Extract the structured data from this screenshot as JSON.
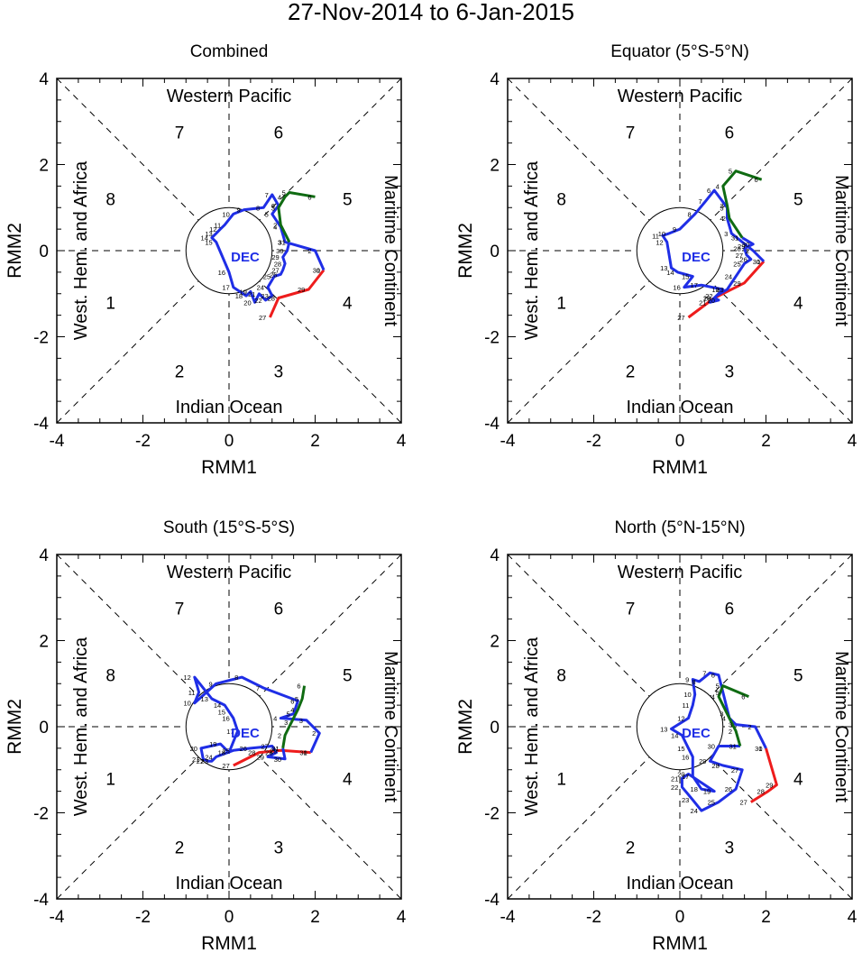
{
  "figure": {
    "title": "27-Nov-2014 to 6-Jan-2015"
  },
  "colors": {
    "nov": "#ee1c1c",
    "dec": "#1f2ee6",
    "jan": "#0f6b12",
    "axis": "#000000"
  },
  "chart_data": [
    {
      "type": "line",
      "title": "Combined",
      "xlabel": "RMM1",
      "ylabel": "RMM2",
      "xlim": [
        -4,
        4
      ],
      "ylim": [
        -4,
        4
      ],
      "xticks": [
        "-4",
        "-2",
        "0",
        "2",
        "4"
      ],
      "yticks": [
        "-4",
        "-2",
        "0",
        "2",
        "4"
      ],
      "regions": {
        "top": "Western Pacific",
        "bottom": "Indian Ocean",
        "left": "West. Hem. and Africa",
        "right": "Maritime Continent"
      },
      "phases": [
        "1",
        "2",
        "3",
        "4",
        "5",
        "6",
        "7",
        "8"
      ],
      "month_label": "DEC",
      "series": [
        {
          "name": "Nov",
          "color_key": "nov",
          "points": [
            [
              0.95,
              -1.55
            ],
            [
              1.15,
              -1.1
            ],
            [
              1.85,
              -0.9
            ],
            [
              2.2,
              -0.45
            ]
          ],
          "labels": [
            "27",
            "28",
            "29",
            "30"
          ]
        },
        {
          "name": "Dec",
          "color_key": "dec",
          "points": [
            [
              2.2,
              -0.45
            ],
            [
              2.0,
              0.0
            ],
            [
              1.3,
              0.2
            ],
            [
              1.2,
              0.55
            ],
            [
              1.0,
              0.85
            ],
            [
              1.15,
              1.05
            ],
            [
              1.0,
              1.3
            ],
            [
              0.8,
              1.0
            ],
            [
              0.35,
              0.95
            ],
            [
              0.1,
              0.85
            ],
            [
              -0.1,
              0.6
            ],
            [
              -0.2,
              0.5
            ],
            [
              -0.3,
              0.4
            ],
            [
              -0.4,
              0.3
            ],
            [
              -0.3,
              0.2
            ],
            [
              0.0,
              -0.5
            ],
            [
              0.1,
              -0.85
            ],
            [
              0.4,
              -1.05
            ],
            [
              0.5,
              -0.95
            ],
            [
              0.6,
              -1.2
            ],
            [
              0.7,
              -1.0
            ],
            [
              0.85,
              -1.15
            ],
            [
              1.0,
              -1.05
            ],
            [
              0.9,
              -0.85
            ],
            [
              1.05,
              -0.6
            ],
            [
              1.2,
              -0.55
            ],
            [
              1.25,
              -0.45
            ],
            [
              1.3,
              -0.3
            ],
            [
              1.25,
              -0.15
            ],
            [
              1.35,
              0.0
            ],
            [
              1.4,
              0.2
            ]
          ],
          "labels": [
            "1",
            "2",
            "3",
            "4",
            "5",
            "6",
            "7",
            "8",
            "9",
            "10",
            "11",
            "12",
            "13",
            "14",
            "15",
            "16",
            "17",
            "18",
            "19",
            "20",
            "21",
            "22",
            "23",
            "24",
            "25",
            "26",
            "27",
            "28",
            "29",
            "30",
            "31"
          ]
        },
        {
          "name": "Jan",
          "color_key": "jan",
          "points": [
            [
              1.4,
              0.2
            ],
            [
              1.2,
              0.6
            ],
            [
              1.15,
              1.0
            ],
            [
              1.3,
              1.25
            ],
            [
              1.4,
              1.35
            ],
            [
              2.0,
              1.25
            ]
          ],
          "labels": [
            "1",
            "2",
            "3",
            "4",
            "5",
            "6"
          ]
        }
      ]
    },
    {
      "type": "line",
      "title": "Equator (5°S-5°N)",
      "xlabel": "RMM1",
      "ylabel": "RMM2",
      "xlim": [
        -4,
        4
      ],
      "ylim": [
        -4,
        4
      ],
      "xticks": [
        "-4",
        "-2",
        "0",
        "2",
        "4"
      ],
      "yticks": [
        "-4",
        "-2",
        "0",
        "2",
        "4"
      ],
      "regions": {
        "top": "Western Pacific",
        "bottom": "Indian Ocean",
        "left": "West. Hem. and Africa",
        "right": "Maritime Continent"
      },
      "phases": [
        "1",
        "2",
        "3",
        "4",
        "5",
        "6",
        "7",
        "8"
      ],
      "month_label": "DEC",
      "series": [
        {
          "name": "Nov",
          "color_key": "nov",
          "points": [
            [
              0.2,
              -1.55
            ],
            [
              0.8,
              -1.1
            ],
            [
              1.5,
              -0.75
            ],
            [
              1.95,
              -0.25
            ]
          ],
          "labels": [
            "27",
            "28",
            "29",
            "30"
          ]
        },
        {
          "name": "Dec",
          "color_key": "dec",
          "points": [
            [
              1.95,
              -0.25
            ],
            [
              1.7,
              0.0
            ],
            [
              1.2,
              0.4
            ],
            [
              1.1,
              0.75
            ],
            [
              1.1,
              1.0
            ],
            [
              0.8,
              1.4
            ],
            [
              0.6,
              1.15
            ],
            [
              0.35,
              0.85
            ],
            [
              0.0,
              0.5
            ],
            [
              -0.25,
              0.4
            ],
            [
              -0.4,
              0.35
            ],
            [
              -0.3,
              0.2
            ],
            [
              -0.2,
              -0.4
            ],
            [
              -0.05,
              -0.5
            ],
            [
              0.3,
              -0.6
            ],
            [
              0.1,
              -0.85
            ],
            [
              0.5,
              -0.8
            ],
            [
              1.0,
              -0.9
            ],
            [
              0.8,
              -1.1
            ],
            [
              0.9,
              -1.15
            ],
            [
              0.7,
              -1.2
            ],
            [
              0.85,
              -1.05
            ],
            [
              1.1,
              -0.9
            ],
            [
              1.3,
              -0.6
            ],
            [
              1.5,
              -0.3
            ],
            [
              1.65,
              -0.2
            ],
            [
              1.55,
              -0.1
            ],
            [
              1.5,
              0.05
            ],
            [
              1.6,
              0.1
            ],
            [
              1.7,
              0.15
            ],
            [
              1.45,
              0.3
            ]
          ],
          "labels": [
            "1",
            "2",
            "3",
            "4",
            "5",
            "6",
            "7",
            "8",
            "9",
            "10",
            "11",
            "12",
            "13",
            "14",
            "15",
            "16",
            "17",
            "18",
            "19",
            "20",
            "21",
            "22",
            "23",
            "24",
            "25",
            "26",
            "27",
            "28",
            "29",
            "30",
            "31"
          ]
        },
        {
          "name": "Jan",
          "color_key": "jan",
          "points": [
            [
              1.45,
              0.3
            ],
            [
              1.15,
              0.75
            ],
            [
              1.1,
              1.05
            ],
            [
              1.0,
              1.5
            ],
            [
              1.3,
              1.85
            ],
            [
              1.9,
              1.65
            ]
          ],
          "labels": [
            "1",
            "2",
            "3",
            "4",
            "5",
            "6"
          ]
        }
      ]
    },
    {
      "type": "line",
      "title": "South (15°S-5°S)",
      "xlabel": "RMM1",
      "ylabel": "RMM2",
      "xlim": [
        -4,
        4
      ],
      "ylim": [
        -4,
        4
      ],
      "xticks": [
        "-4",
        "-2",
        "0",
        "2",
        "4"
      ],
      "yticks": [
        "-4",
        "-2",
        "0",
        "2",
        "4"
      ],
      "regions": {
        "top": "Western Pacific",
        "bottom": "Indian Ocean",
        "left": "West. Hem. and Africa",
        "right": "Maritime Continent"
      },
      "phases": [
        "1",
        "2",
        "3",
        "4",
        "5",
        "6",
        "7",
        "8"
      ],
      "month_label": "DEC",
      "series": [
        {
          "name": "Nov",
          "color_key": "nov",
          "points": [
            [
              0.1,
              -0.9
            ],
            [
              0.7,
              -0.6
            ],
            [
              1.2,
              -0.55
            ],
            [
              1.9,
              -0.6
            ]
          ],
          "labels": [
            "27",
            "28",
            "29",
            "30"
          ]
        },
        {
          "name": "Dec",
          "color_key": "dec",
          "points": [
            [
              1.9,
              -0.6
            ],
            [
              2.1,
              -0.15
            ],
            [
              1.8,
              0.15
            ],
            [
              1.2,
              0.2
            ],
            [
              1.5,
              0.3
            ],
            [
              1.6,
              0.6
            ],
            [
              0.8,
              0.9
            ],
            [
              0.3,
              1.15
            ],
            [
              -0.3,
              1.0
            ],
            [
              -0.8,
              0.55
            ],
            [
              -0.7,
              0.8
            ],
            [
              -0.8,
              1.15
            ],
            [
              -0.4,
              0.65
            ],
            [
              -0.1,
              0.5
            ],
            [
              0.0,
              0.35
            ],
            [
              0.1,
              0.2
            ],
            [
              0.2,
              -0.1
            ],
            [
              0.0,
              -0.6
            ],
            [
              -0.2,
              -0.4
            ],
            [
              -0.65,
              -0.5
            ],
            [
              -0.6,
              -0.75
            ],
            [
              -0.5,
              -0.8
            ],
            [
              -0.4,
              -0.8
            ],
            [
              -0.3,
              -0.7
            ],
            [
              0.1,
              -0.55
            ],
            [
              0.5,
              -0.5
            ],
            [
              1.0,
              -0.45
            ],
            [
              1.1,
              -0.6
            ],
            [
              0.9,
              -0.7
            ],
            [
              1.3,
              -0.75
            ],
            [
              1.25,
              -0.5
            ]
          ],
          "labels": [
            "1",
            "2",
            "3",
            "4",
            "5",
            "6",
            "7",
            "8",
            "9",
            "10",
            "11",
            "12",
            "13",
            "14",
            "15",
            "16",
            "17",
            "18",
            "19",
            "20",
            "21",
            "22",
            "23",
            "24",
            "25",
            "26",
            "27",
            "28",
            "29",
            "30",
            "31"
          ]
        },
        {
          "name": "Jan",
          "color_key": "jan",
          "points": [
            [
              1.25,
              -0.5
            ],
            [
              1.3,
              -0.2
            ],
            [
              1.45,
              0.1
            ],
            [
              1.6,
              0.4
            ],
            [
              1.7,
              0.65
            ],
            [
              1.75,
              0.95
            ]
          ],
          "labels": [
            "1",
            "2",
            "3",
            "4",
            "5",
            "6"
          ]
        }
      ]
    },
    {
      "type": "line",
      "title": "North (5°N-15°N)",
      "xlabel": "RMM1",
      "ylabel": "RMM2",
      "xlim": [
        -4,
        4
      ],
      "ylim": [
        -4,
        4
      ],
      "xticks": [
        "-4",
        "-2",
        "0",
        "2",
        "4"
      ],
      "yticks": [
        "-4",
        "-2",
        "0",
        "2",
        "4"
      ],
      "regions": {
        "top": "Western Pacific",
        "bottom": "Indian Ocean",
        "left": "West. Hem. and Africa",
        "right": "Maritime Continent"
      },
      "phases": [
        "1",
        "2",
        "3",
        "4",
        "5",
        "6",
        "7",
        "8"
      ],
      "month_label": "DEC",
      "series": [
        {
          "name": "Nov",
          "color_key": "nov",
          "points": [
            [
              1.65,
              -1.75
            ],
            [
              2.05,
              -1.5
            ],
            [
              2.25,
              -1.35
            ],
            [
              2.0,
              -0.5
            ]
          ],
          "labels": [
            "27",
            "28",
            "29",
            "30"
          ]
        },
        {
          "name": "Dec",
          "color_key": "dec",
          "points": [
            [
              2.0,
              -0.5
            ],
            [
              1.75,
              0.0
            ],
            [
              1.3,
              0.05
            ],
            [
              1.15,
              0.2
            ],
            [
              1.0,
              0.8
            ],
            [
              0.9,
              1.2
            ],
            [
              0.7,
              1.25
            ],
            [
              0.45,
              1.05
            ],
            [
              0.3,
              1.1
            ],
            [
              0.35,
              0.75
            ],
            [
              0.3,
              0.5
            ],
            [
              0.2,
              0.2
            ],
            [
              -0.2,
              -0.05
            ],
            [
              0.05,
              -0.2
            ],
            [
              0.2,
              -0.5
            ],
            [
              0.3,
              -0.7
            ],
            [
              0.3,
              -1.15
            ],
            [
              0.5,
              -1.45
            ],
            [
              0.8,
              -1.5
            ],
            [
              0.2,
              -1.1
            ],
            [
              0.05,
              -1.2
            ],
            [
              0.05,
              -1.4
            ],
            [
              0.3,
              -1.7
            ],
            [
              0.5,
              -1.95
            ],
            [
              0.9,
              -1.75
            ],
            [
              1.3,
              -1.45
            ],
            [
              1.45,
              -1.0
            ],
            [
              1.0,
              -0.9
            ],
            [
              0.7,
              -0.8
            ],
            [
              0.9,
              -0.45
            ],
            [
              1.4,
              -0.45
            ]
          ],
          "labels": [
            "1",
            "2",
            "3",
            "4",
            "5",
            "6",
            "7",
            "8",
            "9",
            "10",
            "11",
            "12",
            "13",
            "14",
            "15",
            "16",
            "17",
            "18",
            "19",
            "20",
            "21",
            "22",
            "23",
            "24",
            "25",
            "26",
            "27",
            "28",
            "29",
            "30",
            "31"
          ]
        },
        {
          "name": "Jan",
          "color_key": "jan",
          "points": [
            [
              1.4,
              -0.45
            ],
            [
              1.3,
              -0.1
            ],
            [
              1.1,
              0.3
            ],
            [
              0.9,
              0.7
            ],
            [
              1.0,
              0.95
            ],
            [
              1.6,
              0.7
            ]
          ],
          "labels": [
            "1",
            "2",
            "3",
            "4",
            "5",
            "6"
          ]
        }
      ]
    }
  ]
}
